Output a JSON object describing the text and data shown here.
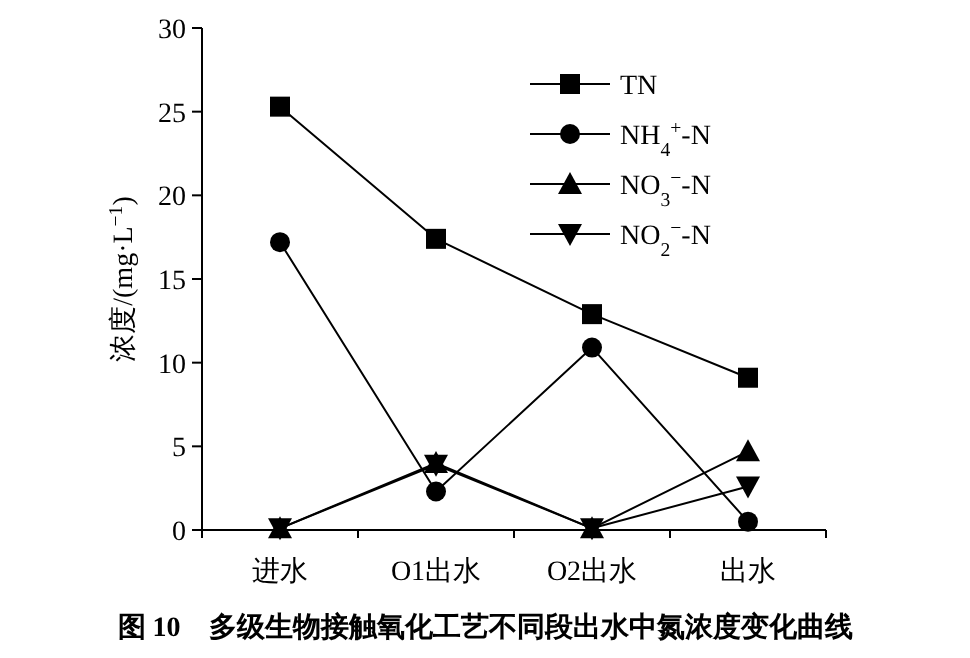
{
  "chart_data": {
    "type": "line",
    "title": "图 10　多级生物接触氧化工艺不同段出水中氮浓度变化曲线",
    "ylabel": "浓度/(mg·L$^{−1}$)",
    "categories": [
      "进水",
      "O1出水",
      "O2出水",
      "出水"
    ],
    "series": [
      {
        "name": "TN",
        "color": "#000000",
        "marker": "square",
        "values": [
          25.3,
          17.4,
          12.9,
          9.1
        ]
      },
      {
        "name": "NH$_{4}$$^{+}$-N",
        "color": "#000000",
        "marker": "circle",
        "values": [
          17.2,
          2.3,
          10.9,
          0.5
        ]
      },
      {
        "name": "NO$_{3}$$^{−}$-N",
        "color": "#000000",
        "marker": "triangle",
        "values": [
          0.1,
          4.0,
          0.1,
          4.7
        ]
      },
      {
        "name": "NO$_{2}$$^{−}$-N",
        "color": "#000000",
        "marker": "triangle-down",
        "values": [
          0.1,
          3.9,
          0.1,
          2.6
        ]
      }
    ],
    "ylim": [
      0,
      30
    ],
    "yticks": [
      0,
      5,
      10,
      15,
      20,
      25,
      30
    ],
    "legend": "top right",
    "grid": false,
    "line_style": "solid"
  }
}
